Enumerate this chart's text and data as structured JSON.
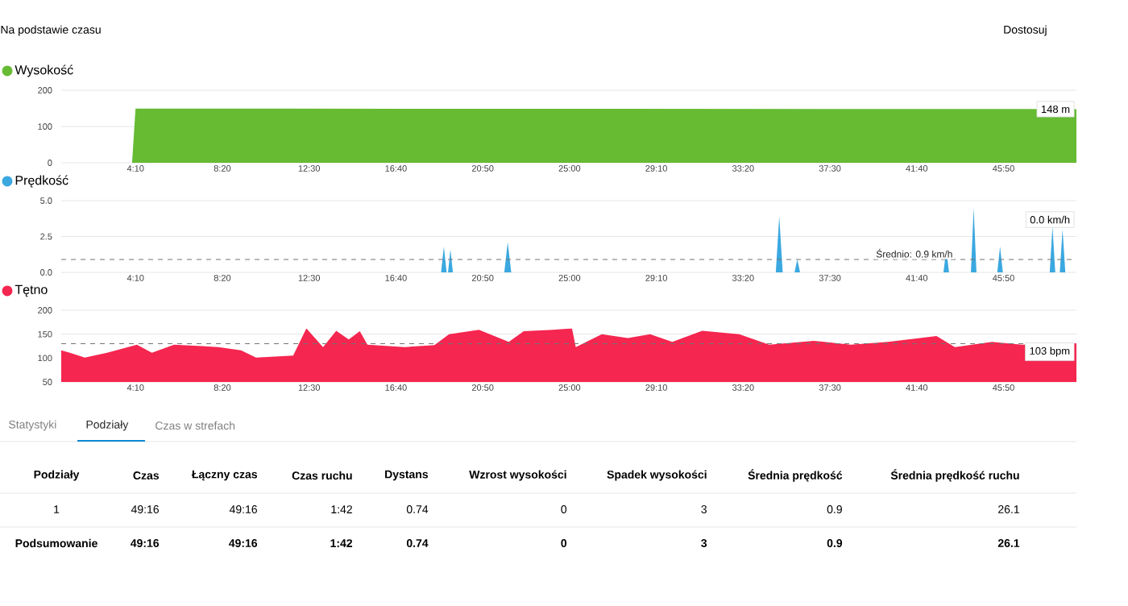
{
  "chart_data": [
    {
      "type": "area",
      "legend": "top left",
      "x": [
        36,
        240,
        250,
        700,
        1000,
        2960
      ],
      "series": [
        {
          "name": "Wysokość",
          "color": "#66bb33",
          "values": [
            0,
            0,
            150,
            150,
            149,
            148
          ]
        }
      ],
      "xlim": [
        36,
        2960
      ],
      "ylim": [
        0,
        200
      ],
      "yticks": [
        0,
        100,
        200
      ],
      "xticks": [
        {
          "value": 250,
          "label": "4:10"
        },
        {
          "value": 500,
          "label": "8:20"
        },
        {
          "value": 750,
          "label": "12:30"
        },
        {
          "value": 1000,
          "label": "16:40"
        },
        {
          "value": 1250,
          "label": "20:50"
        },
        {
          "value": 1500,
          "label": "25:00"
        },
        {
          "value": 1750,
          "label": "29:10"
        },
        {
          "value": 2000,
          "label": "33:20"
        },
        {
          "value": 2250,
          "label": "37:30"
        },
        {
          "value": 2500,
          "label": "41:40"
        },
        {
          "value": 2750,
          "label": "45:50"
        }
      ],
      "grid": "y",
      "annotations": [
        "148 m"
      ]
    },
    {
      "type": "area",
      "legend": "top left",
      "x": [
        36,
        1130,
        1138,
        1146,
        1150,
        1157,
        1164,
        1312,
        1322,
        1332,
        2094,
        2104,
        2114,
        2148,
        2156,
        2164,
        2577,
        2585,
        2593,
        2656,
        2664,
        2672,
        2732,
        2740,
        2748,
        2883,
        2891,
        2899,
        2912,
        2920,
        2928,
        2960
      ],
      "series": [
        {
          "name": "Prędkość",
          "color": "#3ba8e0",
          "values": [
            0,
            0,
            1.8,
            0,
            0,
            1.6,
            0,
            0,
            2.1,
            0,
            0,
            3.9,
            0,
            0,
            0.9,
            0,
            0,
            1.6,
            0,
            0,
            4.5,
            0,
            0,
            1.8,
            0,
            0,
            3.2,
            0,
            0,
            3.0,
            0,
            0
          ]
        }
      ],
      "xlim": [
        36,
        2960
      ],
      "ylim": [
        0,
        5
      ],
      "yticks": [
        {
          "value": 0,
          "label": "0.0"
        },
        {
          "value": 2.5,
          "label": "2.5"
        },
        {
          "value": 5,
          "label": "5.0"
        }
      ],
      "xticks": [
        {
          "value": 250,
          "label": "4:10"
        },
        {
          "value": 500,
          "label": "8:20"
        },
        {
          "value": 750,
          "label": "12:30"
        },
        {
          "value": 1000,
          "label": "16:40"
        },
        {
          "value": 1250,
          "label": "20:50"
        },
        {
          "value": 1500,
          "label": "25:00"
        },
        {
          "value": 1750,
          "label": "29:10"
        },
        {
          "value": 2000,
          "label": "33:20"
        },
        {
          "value": 2250,
          "label": "37:30"
        },
        {
          "value": 2500,
          "label": "41:40"
        },
        {
          "value": 2750,
          "label": "45:50"
        }
      ],
      "grid": "y",
      "ref_lines": [
        {
          "axis": "y",
          "value": 0.9,
          "label": "Średnio: 0.9 km/h",
          "line_style": "dashed"
        }
      ],
      "annotations": [
        "0.0 km/h"
      ]
    },
    {
      "type": "area",
      "legend": "top left",
      "x": [
        36,
        61,
        104,
        168,
        254,
        297,
        361,
        489,
        554,
        597,
        704,
        742,
        790,
        828,
        864,
        896,
        918,
        1025,
        1111,
        1153,
        1239,
        1325,
        1368,
        1453,
        1507,
        1518,
        1593,
        1668,
        1732,
        1796,
        1882,
        1989,
        2075,
        2203,
        2310,
        2417,
        2557,
        2610,
        2717,
        2803,
        2960
      ],
      "series": [
        {
          "name": "Tętno",
          "color": "#f5264f",
          "values": [
            116,
            111,
            101,
            111,
            128,
            111,
            128,
            123,
            116,
            101,
            105,
            162,
            123,
            157,
            139,
            156,
            128,
            123,
            127,
            150,
            159,
            134,
            156,
            159,
            162,
            123,
            150,
            142,
            150,
            134,
            157,
            150,
            128,
            136,
            128,
            134,
            146,
            123,
            134,
            128,
            131
          ]
        }
      ],
      "xlim": [
        36,
        2960
      ],
      "ylim": [
        50,
        200
      ],
      "yticks": [
        50,
        100,
        150,
        200
      ],
      "xticks": [
        {
          "value": 250,
          "label": "4:10"
        },
        {
          "value": 500,
          "label": "8:20"
        },
        {
          "value": 750,
          "label": "12:30"
        },
        {
          "value": 1000,
          "label": "16:40"
        },
        {
          "value": 1250,
          "label": "20:50"
        },
        {
          "value": 1500,
          "label": "25:00"
        },
        {
          "value": 1750,
          "label": "29:10"
        },
        {
          "value": 2000,
          "label": "33:20"
        },
        {
          "value": 2250,
          "label": "37:30"
        },
        {
          "value": 2500,
          "label": "41:40"
        },
        {
          "value": 2750,
          "label": "45:50"
        }
      ],
      "grid": "y",
      "ref_lines": [
        {
          "axis": "y",
          "value": 130,
          "line_style": "dashed"
        }
      ],
      "annotations": [
        "103 bpm"
      ]
    },
    {
      "type": "other",
      "categories": [
        "Podziały",
        "Czas",
        "Łączny czas",
        "Czas ruchu",
        "Dystans",
        "Wzrost wysokości",
        "Spadek wysokości",
        "Średnia prędkość",
        "Średnia prędkość ruchu"
      ],
      "annotations": [
        "Na podstawie czasu",
        "Dostosuj",
        "Statystyki",
        "Podziały",
        "Czas w strefach",
        "1",
        "49:16",
        "49:16",
        "1:42",
        "0.74",
        "0",
        "3",
        "0.9",
        "26.1",
        "Podsumowanie",
        "49:16",
        "49:16",
        "1:42",
        "0.74",
        "0",
        "3",
        "0.9",
        "26.1"
      ]
    }
  ]
}
